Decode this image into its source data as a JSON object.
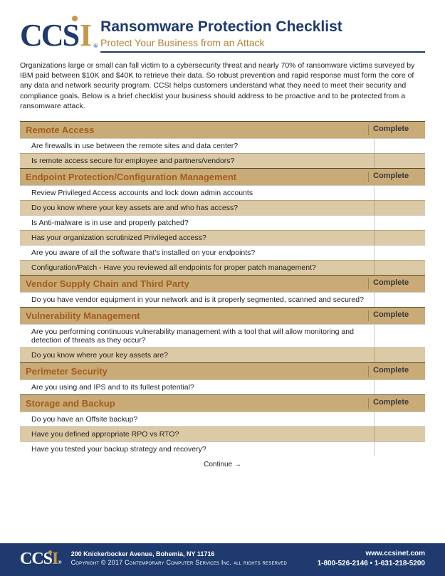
{
  "logo_text": {
    "cc": "CC",
    "s": "S",
    "i": "I"
  },
  "title": "Ransomware Protection Checklist",
  "subtitle": "Protect Your Business from an Attack",
  "intro": "Organizations large or small can fall victim to a cybersecurity threat and nearly 70% of ransomware victims surveyed by IBM paid between $10K and $40K to retrieve their data. So robust prevention and rapid response must form the core of any data and network security program. CCSI helps customers understand what they need to meet their security and compliance goals. Below is a brief checklist your business should address to be proactive and to be protected from a ransomware attack.",
  "complete_label": "Complete",
  "sections": [
    {
      "title": "Remote Access",
      "items": [
        "Are firewalls in use between the remote sites and data center?",
        "Is remote access secure for employee and partners/vendors?"
      ]
    },
    {
      "title": "Endpoint Protection/Configuration Management",
      "items": [
        "Review Privileged Access accounts and lock down admin accounts",
        "Do you know where your key assets are and who has access?",
        "Is Anti-malware is in use and properly patched?",
        "Has your organization scrutinized Privileged access?",
        "Are you aware of all the software that's installed on your endpoints?",
        "Configuration/Patch - Have you reviewed all endpoints for proper patch management?"
      ]
    },
    {
      "title": "Vendor Supply Chain and Third Party",
      "items": [
        "Do you have vendor equipment in your network and is it properly segmented, scanned and secured?"
      ]
    },
    {
      "title": "Vulnerability Management",
      "items": [
        "Are you performing continuous vulnerability management with a tool that will allow monitoring and detection of threats as they occur?",
        "Do you know where your key assets are?"
      ]
    },
    {
      "title": "Perimeter Security",
      "items": [
        "Are you using and IPS and to its fullest potential?"
      ]
    },
    {
      "title": "Storage and Backup",
      "items": [
        "Do you have an Offsite backup?",
        "Have you defined appropriate RPO vs RTO?",
        "Have you tested your backup strategy and recovery?"
      ]
    }
  ],
  "continue_text": "Continue →",
  "footer": {
    "address": "200 Knickerbocker Avenue, Bohemia, NY 11716",
    "copyright": "Copyright © 2017 Contemporary Computer Services Inc. all rights reserved",
    "website": "www.ccsinet.com",
    "phones": "1-800-526-2146 • 1-631-218-5200"
  },
  "colors": {
    "navy": "#1e3a6e",
    "gold": "#c49a4a",
    "section_bg": "#c9ab78",
    "shade_bg": "#dcc9a6",
    "section_title": "#a65c1a"
  }
}
